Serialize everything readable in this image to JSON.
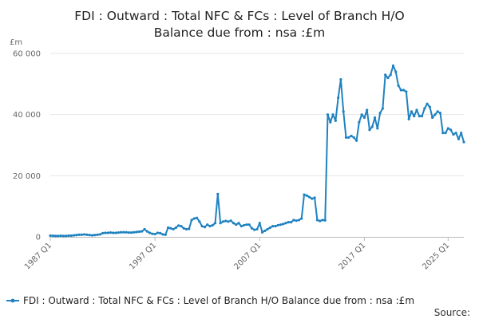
{
  "chart_data": {
    "type": "line",
    "title_lines": [
      "FDI : Outward : Total NFC & FCs : Level of Branch H/O",
      "Balance due from : nsa :£m"
    ],
    "y_unit": "£m",
    "ylim": [
      0,
      60000
    ],
    "y_ticks": [
      0,
      20000,
      40000,
      60000
    ],
    "y_tick_labels": [
      "0",
      "20 000",
      "40 000",
      "60 000"
    ],
    "x_ticks": [
      "1987 Q1",
      "1997 Q1",
      "2007 Q1",
      "2017 Q1",
      "2025 Q1"
    ],
    "grid": "horizontal",
    "legend": "bottom",
    "source_label": "Source:",
    "series": [
      {
        "name": "FDI : Outward : Total NFC & FCs : Level of Branch H/O Balance due from : nsa :£m",
        "color": "#1f82c0",
        "start": "1987 Q1",
        "values": [
          400,
          350,
          300,
          300,
          350,
          300,
          300,
          400,
          400,
          500,
          600,
          700,
          700,
          800,
          700,
          600,
          500,
          600,
          700,
          800,
          1200,
          1300,
          1300,
          1400,
          1300,
          1300,
          1400,
          1500,
          1500,
          1500,
          1400,
          1400,
          1500,
          1600,
          1700,
          1800,
          2500,
          1800,
          1300,
          1000,
          900,
          1300,
          1200,
          800,
          700,
          3000,
          2800,
          2500,
          3000,
          3700,
          3500,
          2800,
          2500,
          2600,
          5500,
          6000,
          6200,
          5000,
          3500,
          3200,
          4000,
          3500,
          3800,
          4500,
          14000,
          4500,
          5000,
          5200,
          5000,
          5300,
          4500,
          4000,
          4500,
          3500,
          3800,
          4000,
          4000,
          2800,
          2300,
          2500,
          4500,
          1500,
          2000,
          2500,
          3000,
          3500,
          3500,
          3800,
          4000,
          4200,
          4500,
          4800,
          4800,
          5500,
          5300,
          5500,
          6000,
          13800,
          13500,
          13000,
          12500,
          12800,
          5500,
          5200,
          5500,
          5400,
          40000,
          37500,
          40000,
          38000,
          45500,
          51500,
          41000,
          32500,
          32500,
          33000,
          32500,
          31500,
          37500,
          40000,
          39000,
          41500,
          35000,
          36000,
          39000,
          35500,
          40500,
          42000,
          53000,
          52000,
          53000,
          56000,
          54000,
          49500,
          48000,
          48000,
          47500,
          38500,
          41000,
          39500,
          41500,
          39500,
          39500,
          42000,
          43500,
          42500,
          39000,
          40000,
          41000,
          40500,
          34000,
          34000,
          35500,
          35000,
          33500,
          34000,
          32000,
          34000,
          31000
        ]
      }
    ]
  }
}
